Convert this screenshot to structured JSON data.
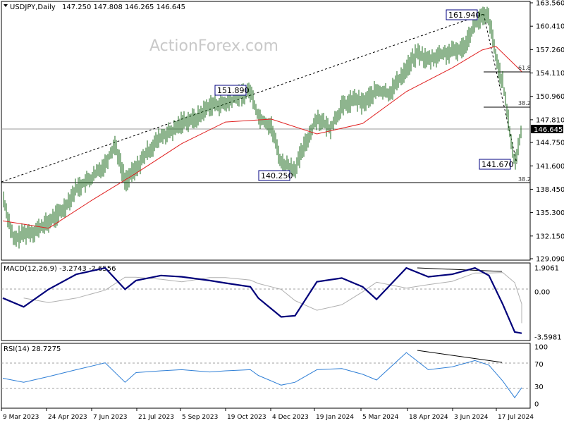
{
  "header": {
    "symbol": "USDJPY,Daily",
    "ohlc": "147.250 147.808 146.265 146.645"
  },
  "watermark": "ActionForex.com",
  "price_axis": {
    "ticks": [
      "163.560",
      "160.410",
      "157.260",
      "154.110",
      "150.960",
      "147.810",
      "144.750",
      "141.600",
      "138.450",
      "135.300",
      "132.150",
      "129.090"
    ],
    "current_price": "146.645"
  },
  "date_axis": {
    "labels": [
      "9 Mar 2023",
      "24 Apr 2023",
      "7 Jun 2023",
      "21 Jul 2023",
      "5 Sep 2023",
      "19 Oct 2023",
      "4 Dec 2023",
      "19 Jan 2024",
      "5 Mar 2024",
      "18 Apr 2024",
      "3 Jun 2024",
      "17 Jul 2024"
    ]
  },
  "annotations": {
    "high1": "151.890",
    "low1": "140.250",
    "high2": "161.940",
    "low2": "141.670",
    "fib_a": "61.8",
    "fib_b": "38.2",
    "fib_c": "38.2"
  },
  "macd": {
    "label": "MACD(12,26,9) -3.2743 -2.6556",
    "ticks": [
      "1.9061",
      "0.00",
      "-3.5981"
    ]
  },
  "rsi": {
    "label": "RSI(14) 28.7275",
    "ticks": [
      "100",
      "70",
      "30",
      "0"
    ]
  },
  "colors": {
    "candle": "#1e6b1e",
    "ma": "#e02020",
    "macd": "#00007a",
    "signal": "#b0b0b0",
    "rsi": "#2f7fd6",
    "trend": "#000000",
    "box_border": "#000080"
  },
  "chart_data": [
    {
      "type": "line",
      "name": "price",
      "x": [
        "2023-03-09",
        "2023-03-20",
        "2023-03-30",
        "2023-04-10",
        "2023-04-24",
        "2023-05-08",
        "2023-05-22",
        "2023-06-07",
        "2023-06-20",
        "2023-06-30",
        "2023-07-10",
        "2023-07-21",
        "2023-08-01",
        "2023-08-15",
        "2023-08-28",
        "2023-09-05",
        "2023-09-20",
        "2023-10-03",
        "2023-10-19",
        "2023-11-01",
        "2023-11-13",
        "2023-11-21",
        "2023-12-04",
        "2023-12-14",
        "2023-12-28",
        "2024-01-10",
        "2024-01-19",
        "2024-02-01",
        "2024-02-13",
        "2024-02-26",
        "2024-03-05",
        "2024-03-19",
        "2024-04-01",
        "2024-04-18",
        "2024-04-29",
        "2024-05-10",
        "2024-05-22",
        "2024-06-03",
        "2024-06-14",
        "2024-06-26",
        "2024-07-03",
        "2024-07-10",
        "2024-07-17",
        "2024-07-24",
        "2024-08-05",
        "2024-08-12"
      ],
      "values": [
        137.5,
        131.5,
        132.5,
        132.8,
        134.0,
        135.6,
        138.6,
        140.0,
        141.9,
        144.6,
        139.5,
        141.2,
        143.4,
        145.5,
        146.3,
        147.5,
        148.0,
        149.8,
        149.9,
        151.0,
        151.7,
        148.3,
        146.9,
        142.0,
        141.2,
        145.4,
        148.1,
        146.6,
        149.5,
        150.6,
        150.0,
        151.7,
        151.4,
        154.7,
        156.8,
        155.8,
        156.6,
        156.9,
        157.5,
        160.8,
        161.6,
        161.6,
        156.2,
        152.7,
        141.7,
        146.6
      ],
      "ylim": [
        129.09,
        163.56
      ]
    },
    {
      "type": "line",
      "name": "MA",
      "x": [
        "2023-03-09",
        "2023-04-24",
        "2023-06-07",
        "2023-07-21",
        "2023-09-05",
        "2023-10-19",
        "2023-12-04",
        "2024-01-19",
        "2024-03-05",
        "2024-04-18",
        "2024-06-03",
        "2024-07-03",
        "2024-07-17",
        "2024-08-12"
      ],
      "values": [
        134.2,
        133.2,
        137.0,
        140.6,
        144.6,
        147.5,
        147.9,
        145.9,
        147.3,
        151.6,
        154.8,
        157.2,
        157.7,
        154.3
      ],
      "ylim": [
        129.09,
        163.56
      ]
    },
    {
      "type": "line",
      "name": "MACD",
      "x": [
        "2023-03-09",
        "2023-03-30",
        "2023-04-24",
        "2023-05-22",
        "2023-06-20",
        "2023-07-10",
        "2023-07-21",
        "2023-08-15",
        "2023-09-05",
        "2023-10-03",
        "2023-10-19",
        "2023-11-13",
        "2023-11-21",
        "2023-12-14",
        "2023-12-28",
        "2024-01-19",
        "2024-02-13",
        "2024-03-05",
        "2024-03-19",
        "2024-04-18",
        "2024-05-10",
        "2024-06-03",
        "2024-06-26",
        "2024-07-10",
        "2024-07-24",
        "2024-08-05",
        "2024-08-12"
      ],
      "values": [
        -0.5,
        -1.2,
        0.2,
        1.4,
        1.9,
        0.2,
        0.9,
        1.3,
        1.2,
        0.9,
        0.7,
        0.4,
        -0.5,
        -2.0,
        -1.9,
        0.8,
        1.1,
        0.4,
        -0.6,
        1.9,
        1.2,
        1.4,
        1.9,
        1.3,
        -1.0,
        -3.2,
        -3.3
      ],
      "ylim": [
        -3.5981,
        1.9061
      ]
    },
    {
      "type": "line",
      "name": "RSI",
      "x": [
        "2023-03-09",
        "2023-03-30",
        "2023-04-24",
        "2023-05-22",
        "2023-06-20",
        "2023-07-10",
        "2023-07-21",
        "2023-08-15",
        "2023-09-05",
        "2023-10-03",
        "2023-10-19",
        "2023-11-13",
        "2023-11-21",
        "2023-12-14",
        "2023-12-28",
        "2024-01-19",
        "2024-02-13",
        "2024-03-05",
        "2024-03-19",
        "2024-04-18",
        "2024-05-10",
        "2024-06-03",
        "2024-06-26",
        "2024-07-10",
        "2024-07-24",
        "2024-08-05",
        "2024-08-12"
      ],
      "values": [
        45,
        38,
        48,
        60,
        72,
        38,
        55,
        58,
        60,
        56,
        58,
        60,
        50,
        33,
        38,
        60,
        62,
        52,
        42,
        90,
        60,
        65,
        76,
        68,
        40,
        11,
        28.7
      ],
      "ylim": [
        0,
        100
      ]
    }
  ]
}
